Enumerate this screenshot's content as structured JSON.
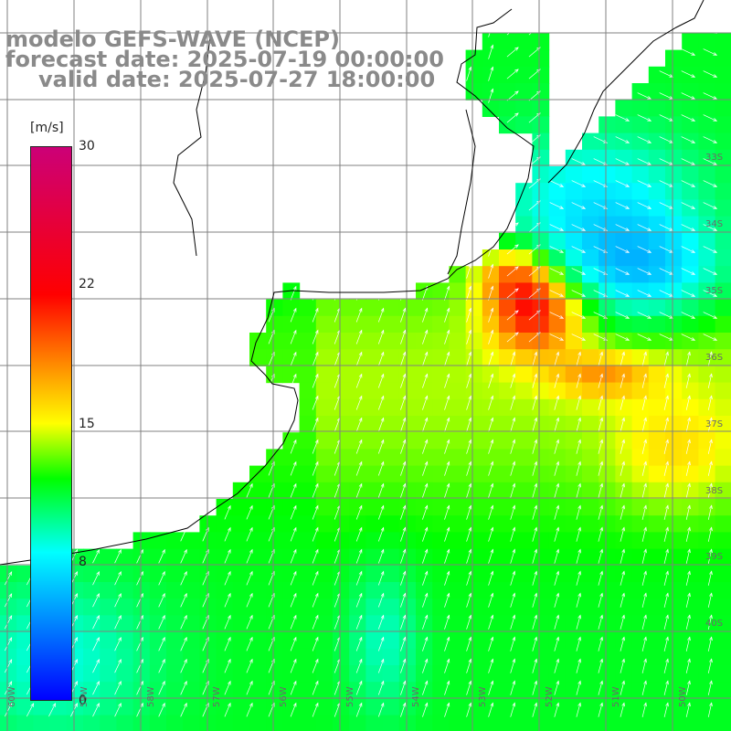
{
  "title": {
    "line1": "modelo GEFS-WAVE (NCEP)",
    "line2": "forecast date: 2025-07-19 00:00:00",
    "line3": "valid date: 2025-07-27 18:00:00"
  },
  "colorbar": {
    "unit": "[m/s]",
    "ticks": [
      "30",
      "22",
      "15",
      "8",
      "0"
    ],
    "tick_values": [
      30,
      22,
      15,
      8,
      0
    ],
    "min": 0,
    "max": 30,
    "stops": [
      {
        "v": 0,
        "color": "#0000ff"
      },
      {
        "v": 8,
        "color": "#00ffff"
      },
      {
        "v": 12,
        "color": "#00ff00"
      },
      {
        "v": 15,
        "color": "#ffff00"
      },
      {
        "v": 22,
        "color": "#ff0000"
      },
      {
        "v": 30,
        "color": "#cc0077"
      }
    ]
  },
  "latitude_labels": [
    "33S",
    "34S",
    "35S",
    "36S",
    "37S",
    "38S",
    "39S",
    "40S"
  ],
  "longitude_labels": [
    "60W",
    "59W",
    "58W",
    "57W",
    "56W",
    "55W",
    "54W",
    "53W",
    "52W",
    "51W",
    "50W"
  ],
  "map": {
    "land_color": "#ffffff",
    "grid_color": "#808080",
    "coast_color": "#000000",
    "arrow_color": "#ffffff"
  }
}
